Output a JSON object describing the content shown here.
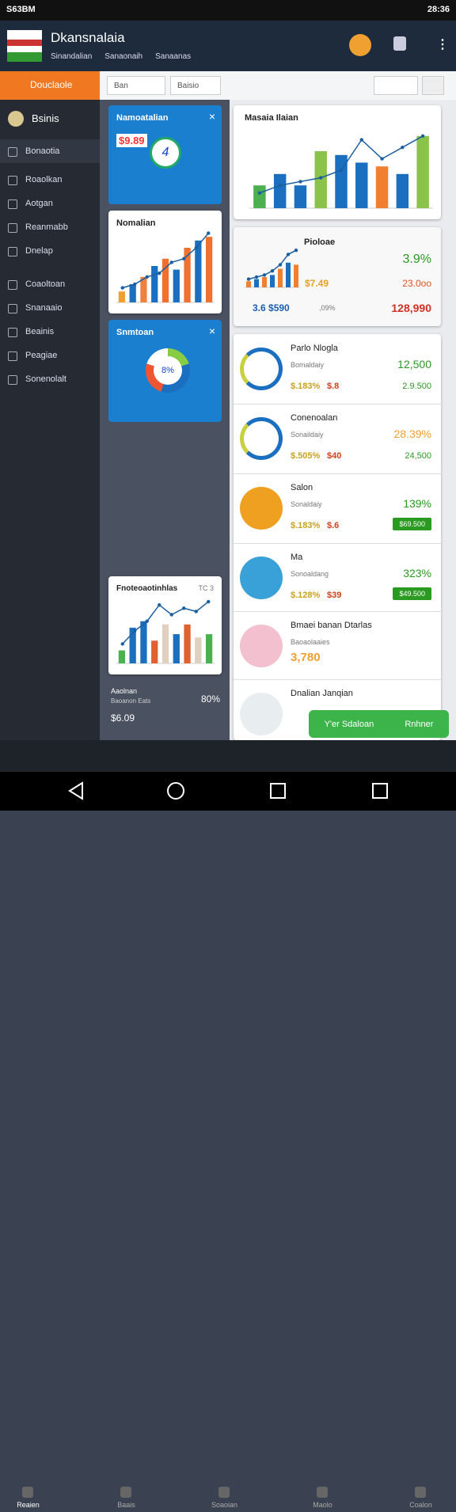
{
  "status_bar": {
    "carrier": "S63BM",
    "time": "28:36"
  },
  "header": {
    "title": "Dkansnalaia",
    "tabs": [
      "Sinandalian",
      "Sanaonaih",
      "Sanaanas"
    ]
  },
  "toolbar": {
    "button": "Douclaole",
    "filters": [
      "Ban",
      "Baisio"
    ]
  },
  "sidebar": {
    "profile": "Bsinis",
    "items": [
      "Bonaotia",
      "Roaolkan",
      "Aotgan",
      "Reanmabb",
      "Dnelap",
      "Coaoltoan",
      "Snanaaio",
      "Beainis",
      "Peagiae",
      "Sonenolalt"
    ]
  },
  "widgets": [
    {
      "title": "Namoatalian",
      "value": "$9.89",
      "center": "4"
    },
    {
      "title": "Nomalian",
      "chart": {
        "ylim": [
          0,
          100
        ],
        "values": [
          15,
          25,
          35,
          50,
          60,
          45,
          75,
          85,
          90
        ],
        "colors": [
          "#f0a030",
          "#1b6fc0",
          "#f08040",
          "#1b6fc0",
          "#f07030",
          "#1b6fc0",
          "#f07030",
          "#1b6fc0",
          "#f07030"
        ],
        "line": [
          20,
          25,
          35,
          40,
          55,
          60,
          75,
          95
        ]
      }
    },
    {
      "title": "Snmtoan",
      "center": "8%"
    },
    {
      "title": "Fnoteoaotinhlas",
      "badge": "TC 3",
      "chart": {
        "ylim": [
          0,
          100
        ],
        "values": [
          20,
          55,
          65,
          35,
          60,
          45,
          60,
          40,
          45
        ],
        "colors": [
          "#4caf50",
          "#1b6fc0",
          "#1b6fc0",
          "#e06030",
          "#e0d0c0",
          "#1b6fc0",
          "#e06030",
          "#e0d0c0",
          "#4caf50"
        ],
        "line": [
          30,
          50,
          65,
          90,
          75,
          85,
          80,
          95
        ]
      }
    }
  ],
  "summary": {
    "label": "Aaolnan",
    "sub": "Baoanon Eats",
    "percent": "80%",
    "value": "$6.09"
  },
  "main_chart": {
    "title": "Masaia Ilaian",
    "chart": {
      "ylim": [
        0,
        100
      ],
      "values": [
        30,
        45,
        30,
        75,
        70,
        60,
        55,
        45,
        95
      ],
      "colors": [
        "#4caf50",
        "#1b6fc0",
        "#1b6fc0",
        "#8bc34a",
        "#1b6fc0",
        "#1b6fc0",
        "#f08030",
        "#1b6fc0",
        "#8bc34a"
      ],
      "line": [
        20,
        30,
        35,
        40,
        50,
        90,
        65,
        80,
        95
      ]
    }
  },
  "stats": {
    "title": "Pioloae",
    "percent": "3.9%",
    "price": "$7.49",
    "total": "23.0oo",
    "left": "3.6 $590",
    "mid": ",09%",
    "right": "128,990",
    "chart": {
      "ylim": [
        0,
        100
      ],
      "values": [
        15,
        20,
        25,
        30,
        45,
        60,
        55
      ],
      "colors": [
        "#f08030",
        "#1b6fc0",
        "#f08030",
        "#1b6fc0",
        "#f08030",
        "#1b6fc0",
        "#f08030"
      ],
      "line": [
        20,
        25,
        30,
        40,
        55,
        80,
        90
      ]
    }
  },
  "list": [
    {
      "name": "Parlo Nlogla",
      "sub": "Bomaldaiy",
      "value": "12,500",
      "price": "$.183%",
      "amount": "$.8",
      "extra": "2.9.500",
      "color": "#2a9a20"
    },
    {
      "name": "Conenoalan",
      "sub": "Sonaildaiy",
      "value": "28.39%",
      "price": "$.505%",
      "amount": "$40",
      "extra": "24,500",
      "color": "#f0a030"
    },
    {
      "name": "Salon",
      "sub": "Sonaldaiy",
      "value": "139%",
      "price": "$.183%",
      "amount": "$.6",
      "button": "$69.500",
      "color": "#2a9a20"
    },
    {
      "name": "Ma",
      "sub": "Sonoaldang",
      "value": "323%",
      "price": "$.128%",
      "amount": "$39",
      "button": "$49.500",
      "color": "#2a9a20"
    },
    {
      "name": "Bmaei banan Dtarlas",
      "sub": "Baoaolaaies",
      "value": "3,780",
      "color": "#f0a030"
    },
    {
      "name": "Dnalian Janqian",
      "color": "#2a9a20"
    }
  ],
  "fab": {
    "left": "Y'er Sdaloan",
    "right": "Rnhner"
  },
  "bottom_nav": [
    "Reaien",
    "Baais",
    "Soaoian",
    "Maolo",
    "Coalon"
  ]
}
